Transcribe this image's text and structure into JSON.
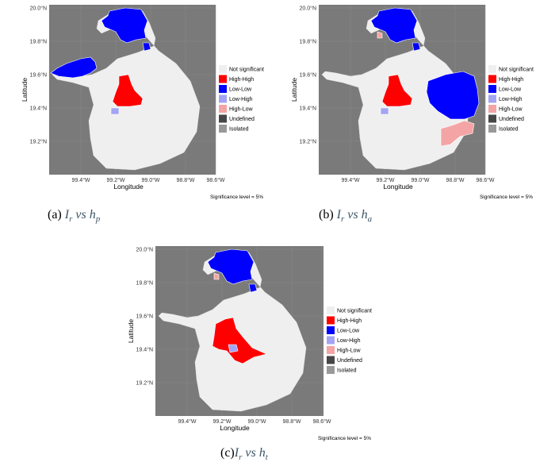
{
  "colors": {
    "panel_background": "#7a7a7a",
    "Not significant": "#efefef",
    "High-High": "#ff0000",
    "Low-Low": "#0000ff",
    "Low-High": "#a4a4f4",
    "High-Low": "#f4a4a4",
    "Undefined": "#464646",
    "Isolated": "#999999"
  },
  "legend": {
    "categories": [
      "Not significant",
      "High-High",
      "Low-Low",
      "Low-High",
      "High-Low",
      "Undefined",
      "Isolated"
    ]
  },
  "axes": {
    "xlabel": "Longitude",
    "ylabel": "Latitude",
    "x_ticks": [
      "99.4°W",
      "99.2°W",
      "99.0°W",
      "98.8°W",
      "98.6°W"
    ],
    "y_ticks": [
      "20.0°N",
      "19.8°N",
      "19.6°N",
      "19.4°N",
      "19.2°N"
    ]
  },
  "significance_note": "Significance level = 5%",
  "panels": [
    {
      "id": "a",
      "caption_prefix": "(a) ",
      "caption_ir": "I",
      "caption_ir_sub": "r",
      "caption_vs": " vs ",
      "caption_h": "h",
      "caption_h_sub": "p",
      "clusters": {
        "north": "Low-Low",
        "west": "Low-Low",
        "center": "High-High",
        "center_south": "Low-High"
      }
    },
    {
      "id": "b",
      "caption_prefix": "(b) ",
      "caption_ir": "I",
      "caption_ir_sub": "r",
      "caption_vs": " vs ",
      "caption_h": "h",
      "caption_h_sub": "a",
      "clusters": {
        "north": "Low-Low",
        "north_small": "High-Low",
        "center": "High-High",
        "center_south": "Low-High",
        "east": "Low-Low",
        "southeast": "High-Low"
      }
    },
    {
      "id": "c",
      "caption_prefix": "(c)",
      "caption_ir": "I",
      "caption_ir_sub": "r",
      "caption_vs": " vs ",
      "caption_h": "h",
      "caption_h_sub": "t",
      "clusters": {
        "north": "Low-Low",
        "north_small": "High-Low",
        "center": "High-High",
        "center_south": "Low-High"
      }
    }
  ]
}
